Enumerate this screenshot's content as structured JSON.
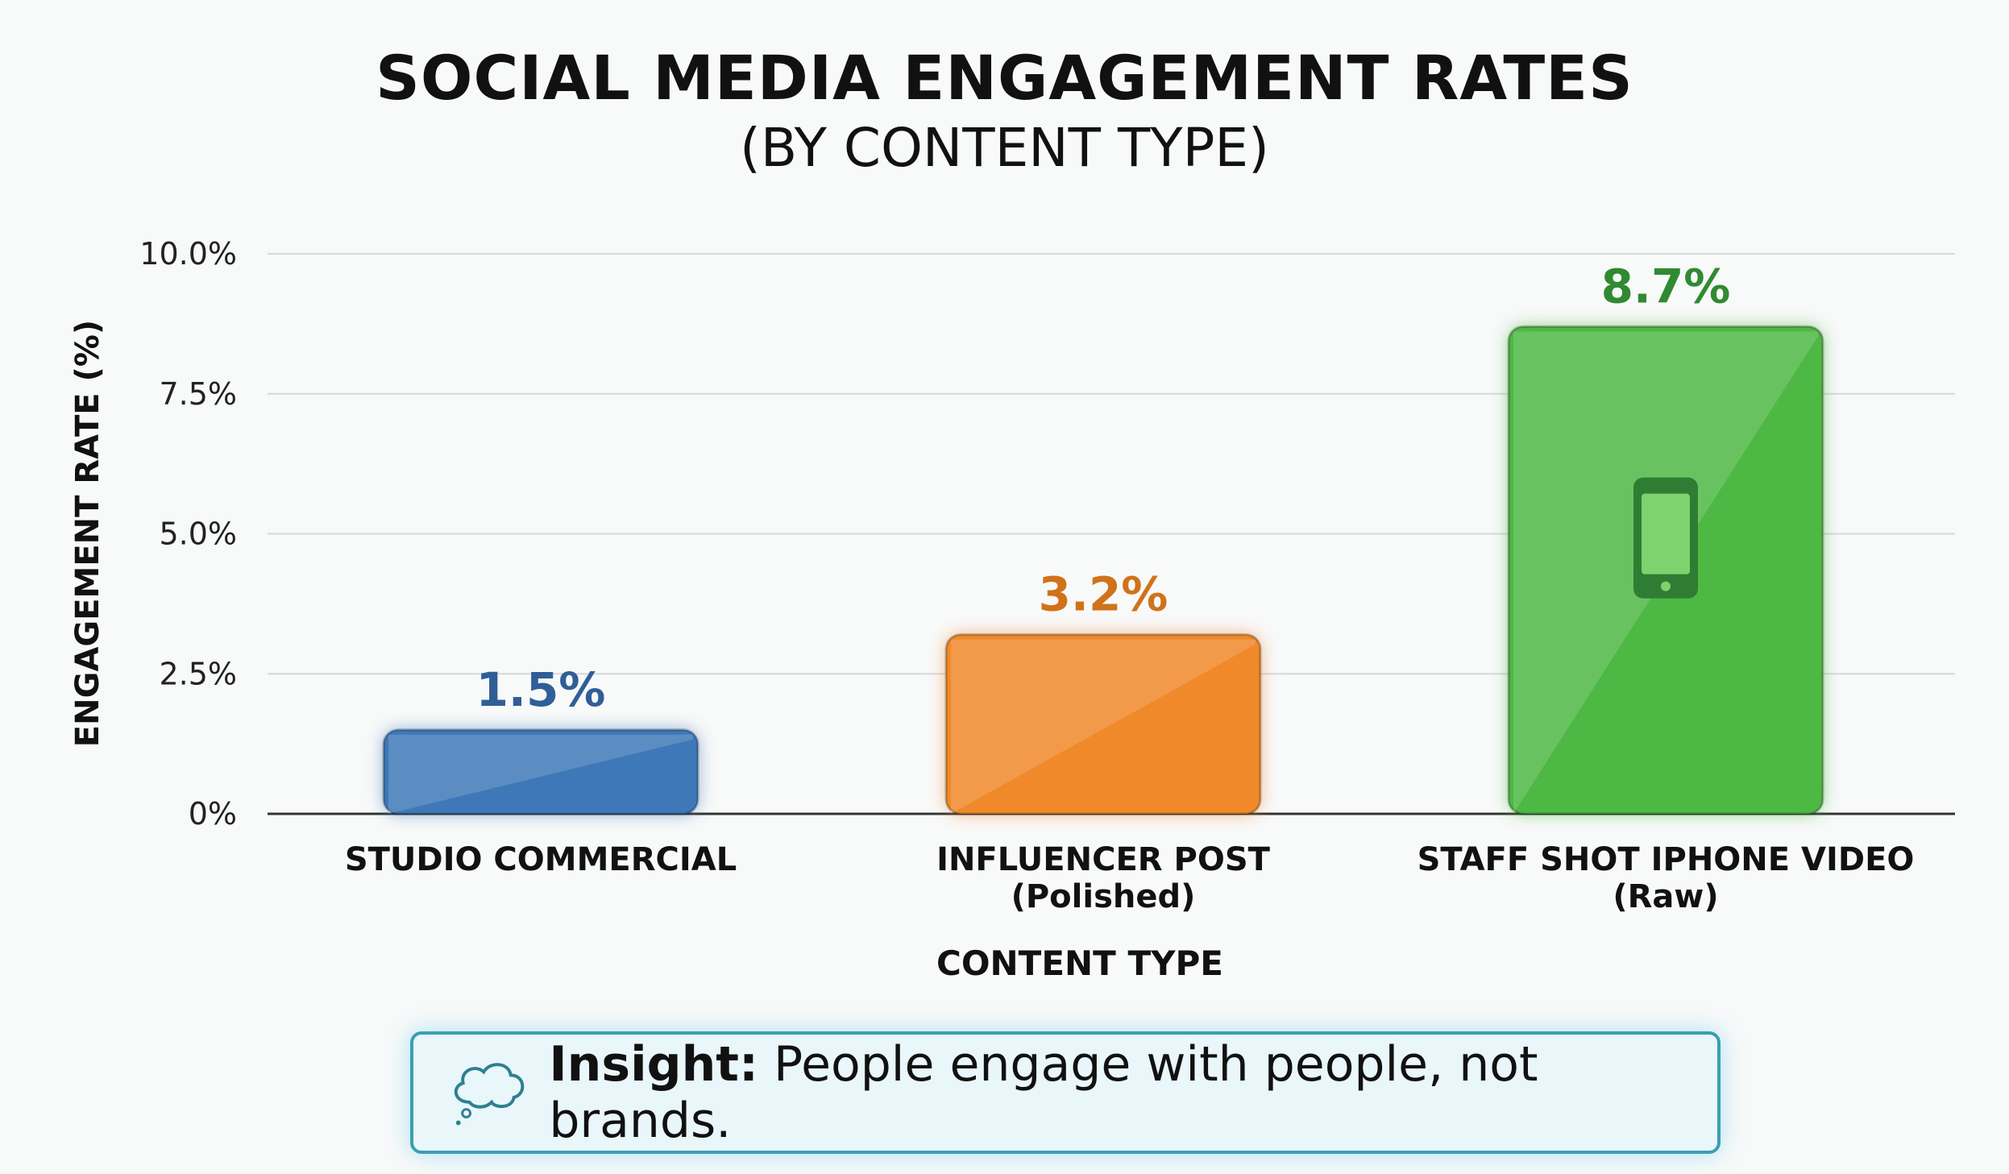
{
  "chart_data": {
    "type": "bar",
    "title": "SOCIAL MEDIA ENGAGEMENT RATES",
    "subtitle": "(BY CONTENT TYPE)",
    "xlabel": "CONTENT TYPE",
    "ylabel": "ENGAGEMENT RATE (%)",
    "ylim": [
      0,
      10
    ],
    "yticks": [
      0,
      2.5,
      5,
      7.5,
      10
    ],
    "ytick_labels": [
      "0%",
      "2.5%",
      "5.0%",
      "7.5%",
      "10.0%"
    ],
    "grid": true,
    "categories": [
      [
        "STUDIO COMMERCIAL"
      ],
      [
        "INFLUENCER POST",
        "(Polished)"
      ],
      [
        "STAFF SHOT IPHONE VIDEO",
        "(Raw)"
      ]
    ],
    "values": [
      1.5,
      3.2,
      8.7
    ],
    "data_labels": [
      "1.5%",
      "3.2%",
      "8.7%"
    ],
    "colors": [
      "#3f78b8",
      "#f0892a",
      "#4db843"
    ],
    "label_colors": [
      "#2f5f96",
      "#d1711a",
      "#2f8a32"
    ],
    "bar_icons": [
      null,
      null,
      "smartphone-icon"
    ]
  },
  "insight": {
    "label": "Insight:",
    "text": " People engage with people, not brands.",
    "icon": "thought-bubble-icon",
    "color": "#3a9fb0"
  }
}
